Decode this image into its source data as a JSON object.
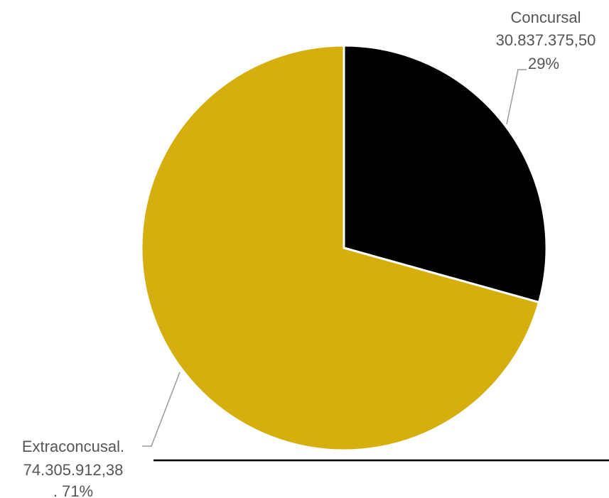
{
  "chart_data": {
    "type": "pie",
    "slices": [
      {
        "category": "Concursal",
        "value_label": "30.837.375,50",
        "percent_label": "29%",
        "value": 30837375.5,
        "color": "#000000"
      },
      {
        "category": "Extraconcusal.",
        "value_label": "74.305.912,38",
        "percent_label": ". 71%",
        "value": 74305912.38,
        "color": "#D4AF0D"
      }
    ],
    "legend": "none"
  }
}
